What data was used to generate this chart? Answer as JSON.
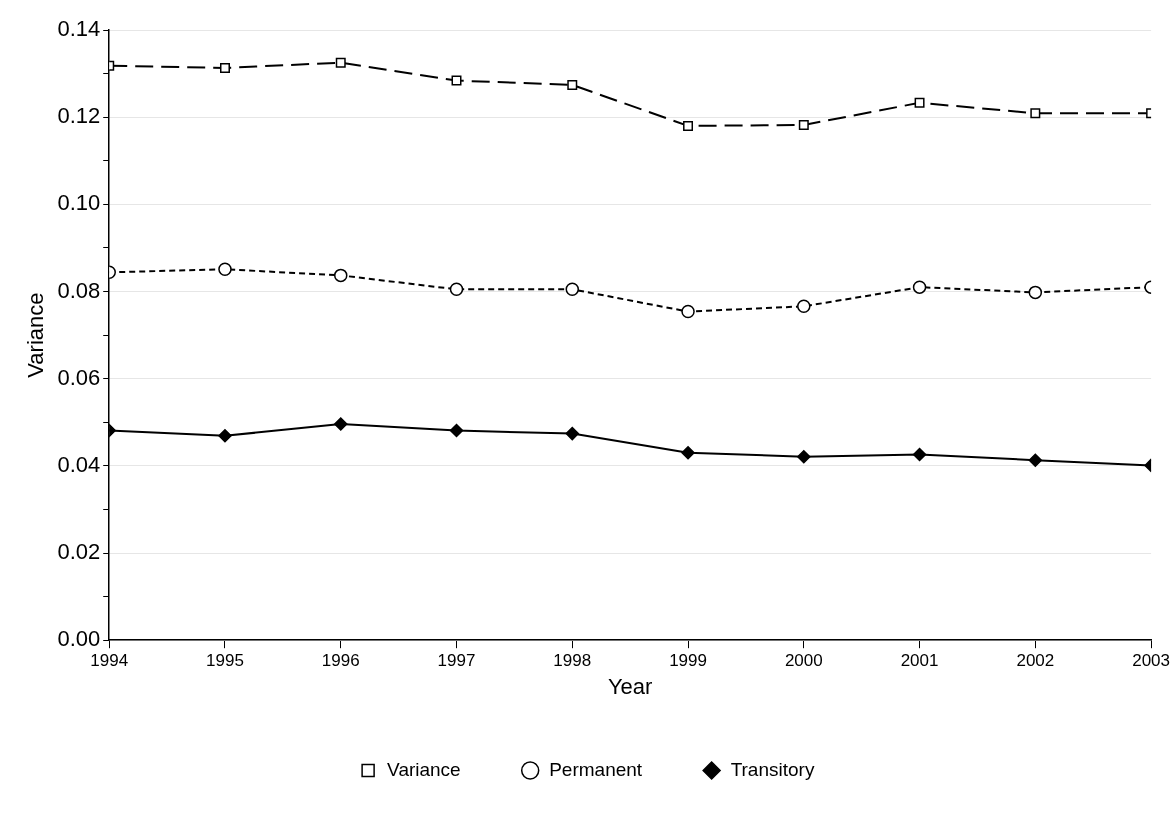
{
  "chart_data": {
    "type": "line",
    "xlabel": "Year",
    "ylabel": "Variance",
    "x": [
      1994,
      1995,
      1996,
      1997,
      1998,
      1999,
      2000,
      2001,
      2002,
      2003
    ],
    "xlim": [
      1994,
      2003
    ],
    "xticks": [
      1994,
      1995,
      1996,
      1997,
      1998,
      1999,
      2000,
      2001,
      2002,
      2003
    ],
    "ylim": [
      0,
      0.14
    ],
    "yticks": [
      {
        "value": 0,
        "label": "0.00"
      },
      {
        "value": 0.01,
        "label": null
      },
      {
        "value": 0.02,
        "label": "0.02"
      },
      {
        "value": 0.03,
        "label": null
      },
      {
        "value": 0.04,
        "label": "0.04"
      },
      {
        "value": 0.05,
        "label": null
      },
      {
        "value": 0.06,
        "label": "0.06"
      },
      {
        "value": 0.07,
        "label": null
      },
      {
        "value": 0.08,
        "label": "0.08"
      },
      {
        "value": 0.09,
        "label": null
      },
      {
        "value": 0.1,
        "label": "0.10"
      },
      {
        "value": 0.11,
        "label": null
      },
      {
        "value": 0.12,
        "label": "0.12"
      },
      {
        "value": 0.13,
        "label": null
      },
      {
        "value": 0.14,
        "label": "0.14"
      }
    ],
    "grid": "y",
    "legend": "bottom",
    "series": [
      {
        "name": "Variance",
        "color": "#000000",
        "marker": "square",
        "line_style": "dashed",
        "values": [
          0.1318,
          0.1313,
          0.1325,
          0.1284,
          0.1274,
          0.118,
          0.1182,
          0.1233,
          0.1209,
          0.1209
        ]
      },
      {
        "name": "Permanent",
        "color": "#000000",
        "marker": "circle",
        "line_style": "dotted",
        "values": [
          0.0844,
          0.0851,
          0.0837,
          0.0805,
          0.0805,
          0.0754,
          0.0766,
          0.081,
          0.0798,
          0.081
        ]
      },
      {
        "name": "Transitory",
        "color": "#000000",
        "marker": "diamond",
        "line_style": "solid",
        "values": [
          0.0481,
          0.0469,
          0.0496,
          0.0481,
          0.0474,
          0.043,
          0.0421,
          0.0426,
          0.0413,
          0.0401
        ]
      }
    ]
  }
}
